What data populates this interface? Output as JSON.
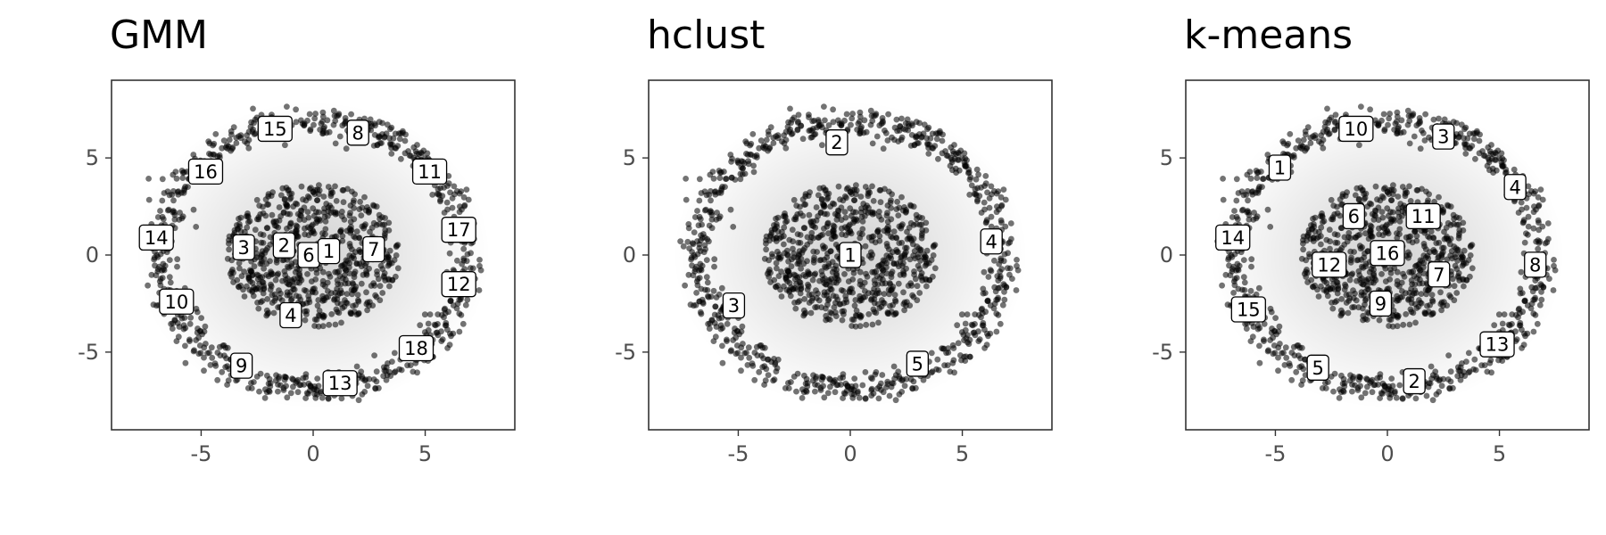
{
  "chart_data": [
    {
      "type": "scatter",
      "title": "GMM",
      "xlim": [
        -9,
        9
      ],
      "ylim": [
        -9,
        9
      ],
      "x_ticks": [
        -5,
        0,
        5
      ],
      "x_tick_labels": [
        "-5",
        "0",
        "5"
      ],
      "y_ticks": [
        -5,
        0,
        5
      ],
      "y_tick_labels": [
        "-5",
        "0",
        "5"
      ],
      "grid": false,
      "data_description": "Two concentric rings of points: inner disc radius ~3.8, outer annulus radius ~6.3-7.5",
      "cluster_labels": [
        {
          "label": "15",
          "x": -1.7,
          "y": 6.5
        },
        {
          "label": "8",
          "x": 2.0,
          "y": 6.3
        },
        {
          "label": "16",
          "x": -4.8,
          "y": 4.3
        },
        {
          "label": "11",
          "x": 5.2,
          "y": 4.3
        },
        {
          "label": "14",
          "x": -7.0,
          "y": 0.9
        },
        {
          "label": "17",
          "x": 6.5,
          "y": 1.3
        },
        {
          "label": "3",
          "x": -3.1,
          "y": 0.4
        },
        {
          "label": "2",
          "x": -1.3,
          "y": 0.5
        },
        {
          "label": "6",
          "x": -0.2,
          "y": 0.0
        },
        {
          "label": "1",
          "x": 0.7,
          "y": 0.2
        },
        {
          "label": "7",
          "x": 2.7,
          "y": 0.3
        },
        {
          "label": "12",
          "x": 6.5,
          "y": -1.5
        },
        {
          "label": "10",
          "x": -6.1,
          "y": -2.4
        },
        {
          "label": "4",
          "x": -1.0,
          "y": -3.1
        },
        {
          "label": "18",
          "x": 4.6,
          "y": -4.8
        },
        {
          "label": "9",
          "x": -3.2,
          "y": -5.7
        },
        {
          "label": "13",
          "x": 1.2,
          "y": -6.6
        }
      ]
    },
    {
      "type": "scatter",
      "title": "hclust",
      "xlim": [
        -9,
        9
      ],
      "ylim": [
        -9,
        9
      ],
      "x_ticks": [
        -5,
        0,
        5
      ],
      "x_tick_labels": [
        "-5",
        "0",
        "5"
      ],
      "y_ticks": [
        -5,
        0,
        5
      ],
      "y_tick_labels": [
        "-5",
        "0",
        "5"
      ],
      "grid": false,
      "data_description": "Two concentric rings of points: inner disc radius ~3.8, outer annulus radius ~6.3-7.5",
      "cluster_labels": [
        {
          "label": "2",
          "x": -0.6,
          "y": 5.8
        },
        {
          "label": "4",
          "x": 6.3,
          "y": 0.7
        },
        {
          "label": "1",
          "x": 0.0,
          "y": 0.0
        },
        {
          "label": "3",
          "x": -5.2,
          "y": -2.6
        },
        {
          "label": "5",
          "x": 3.0,
          "y": -5.6
        }
      ]
    },
    {
      "type": "scatter",
      "title": "k-means",
      "xlim": [
        -9,
        9
      ],
      "ylim": [
        -9,
        9
      ],
      "x_ticks": [
        -5,
        0,
        5
      ],
      "x_tick_labels": [
        "-5",
        "0",
        "5"
      ],
      "y_ticks": [
        -5,
        0,
        5
      ],
      "y_tick_labels": [
        "-5",
        "0",
        "5"
      ],
      "grid": false,
      "data_description": "Two concentric rings of points: inner disc radius ~3.8, outer annulus radius ~6.3-7.5",
      "cluster_labels": [
        {
          "label": "10",
          "x": -1.4,
          "y": 6.5
        },
        {
          "label": "3",
          "x": 2.5,
          "y": 6.1
        },
        {
          "label": "1",
          "x": -4.8,
          "y": 4.5
        },
        {
          "label": "4",
          "x": 5.7,
          "y": 3.5
        },
        {
          "label": "14",
          "x": -6.9,
          "y": 0.9
        },
        {
          "label": "6",
          "x": -1.5,
          "y": 2.0
        },
        {
          "label": "11",
          "x": 1.6,
          "y": 2.0
        },
        {
          "label": "16",
          "x": 0.0,
          "y": 0.1
        },
        {
          "label": "12",
          "x": -2.6,
          "y": -0.5
        },
        {
          "label": "7",
          "x": 2.3,
          "y": -1.0
        },
        {
          "label": "8",
          "x": 6.6,
          "y": -0.5
        },
        {
          "label": "15",
          "x": -6.2,
          "y": -2.8
        },
        {
          "label": "9",
          "x": -0.3,
          "y": -2.5
        },
        {
          "label": "13",
          "x": 4.9,
          "y": -4.6
        },
        {
          "label": "5",
          "x": -3.1,
          "y": -5.8
        },
        {
          "label": "2",
          "x": 1.2,
          "y": -6.5
        }
      ]
    }
  ],
  "style": {
    "point_color": "#000000",
    "panel_border": "#333333",
    "tick_label_color": "#4d4d4d",
    "title_color": "#000000",
    "label_border": "#000000",
    "label_fill": "#ffffff"
  }
}
